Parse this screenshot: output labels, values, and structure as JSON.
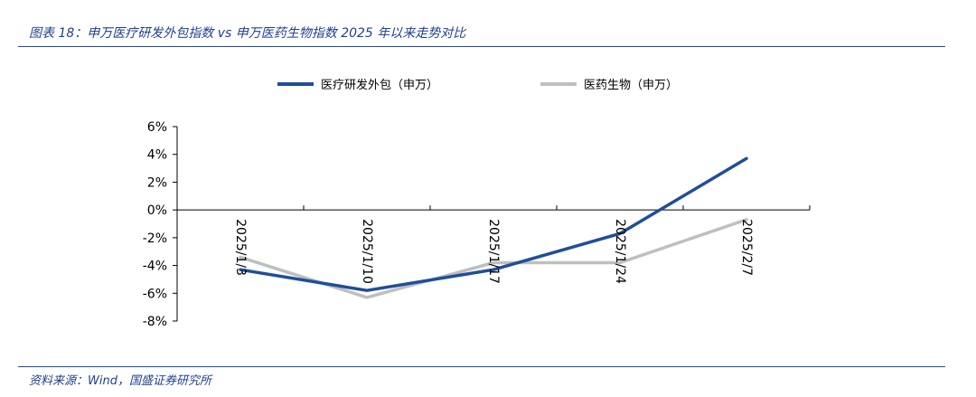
{
  "figure": {
    "title": "图表 18：申万医疗研发外包指数 vs 申万医药生物指数 2025 年以来走势对比",
    "source": "资料来源：Wind，国盛证券研究所"
  },
  "chart_data": {
    "type": "line",
    "x": [
      "2025/1/3",
      "2025/1/10",
      "2025/1/17",
      "2025/1/24",
      "2025/2/7"
    ],
    "series": [
      {
        "name": "医疗研发外包（申万）",
        "color": "#1f4e9a",
        "values": [
          -4.3,
          -5.8,
          -4.3,
          -1.7,
          3.7
        ]
      },
      {
        "name": "医药生物（申万）",
        "color": "#bfbfbf",
        "values": [
          -3.4,
          -6.3,
          -3.8,
          -3.8,
          -0.7
        ]
      }
    ],
    "yticks": [
      "6%",
      "4%",
      "2%",
      "0%",
      "-2%",
      "-4%",
      "-6%",
      "-8%"
    ],
    "ylim": [
      -8,
      6
    ],
    "legend_position": "top",
    "grid": false
  }
}
